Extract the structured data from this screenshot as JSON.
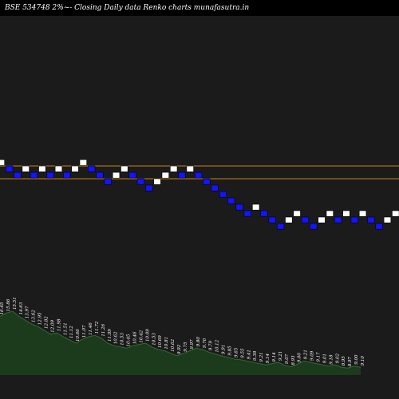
{
  "header": {
    "left": "BSE 534748  2%~-  Closing Daily data  Renko  charts munafasutra.in"
  },
  "colors": {
    "background": "#000000",
    "panel": "#1b1b1b",
    "up_brick": "#ffffff",
    "down_brick": "#1414ff",
    "brick_border": "#000000",
    "level_line": "#c8801a",
    "volume_fill": "#1c3a1c",
    "volume_line": "#2f6a2f"
  },
  "chart_data": {
    "type": "renko",
    "brick_size_label": "2%",
    "levels": [
      12.3,
      12.0
    ],
    "bricks": [
      {
        "low": 12.3,
        "dir": "up"
      },
      {
        "low": 12.15,
        "dir": "down"
      },
      {
        "low": 12.0,
        "dir": "down"
      },
      {
        "low": 12.15,
        "dir": "up"
      },
      {
        "low": 12.0,
        "dir": "down"
      },
      {
        "low": 12.15,
        "dir": "up"
      },
      {
        "low": 12.0,
        "dir": "down"
      },
      {
        "low": 12.15,
        "dir": "up"
      },
      {
        "low": 12.0,
        "dir": "down"
      },
      {
        "low": 12.15,
        "dir": "up"
      },
      {
        "low": 12.3,
        "dir": "up"
      },
      {
        "low": 12.15,
        "dir": "down"
      },
      {
        "low": 12.0,
        "dir": "down"
      },
      {
        "low": 11.85,
        "dir": "down"
      },
      {
        "low": 12.0,
        "dir": "up"
      },
      {
        "low": 12.15,
        "dir": "up"
      },
      {
        "low": 12.0,
        "dir": "down"
      },
      {
        "low": 11.85,
        "dir": "down"
      },
      {
        "low": 11.7,
        "dir": "down"
      },
      {
        "low": 11.85,
        "dir": "up"
      },
      {
        "low": 12.0,
        "dir": "up"
      },
      {
        "low": 12.15,
        "dir": "up"
      },
      {
        "low": 12.0,
        "dir": "down"
      },
      {
        "low": 12.15,
        "dir": "up"
      },
      {
        "low": 12.0,
        "dir": "down"
      },
      {
        "low": 11.85,
        "dir": "down"
      },
      {
        "low": 11.7,
        "dir": "down"
      },
      {
        "low": 11.55,
        "dir": "down"
      },
      {
        "low": 11.4,
        "dir": "down"
      },
      {
        "low": 11.25,
        "dir": "down"
      },
      {
        "low": 11.1,
        "dir": "down"
      },
      {
        "low": 11.25,
        "dir": "up"
      },
      {
        "low": 11.1,
        "dir": "down"
      },
      {
        "low": 10.95,
        "dir": "down"
      },
      {
        "low": 10.8,
        "dir": "down"
      },
      {
        "low": 10.95,
        "dir": "up"
      },
      {
        "low": 11.1,
        "dir": "up"
      },
      {
        "low": 10.95,
        "dir": "down"
      },
      {
        "low": 10.8,
        "dir": "down"
      },
      {
        "low": 10.95,
        "dir": "up"
      },
      {
        "low": 11.1,
        "dir": "up"
      },
      {
        "low": 10.95,
        "dir": "down"
      },
      {
        "low": 11.1,
        "dir": "up"
      },
      {
        "low": 10.95,
        "dir": "down"
      },
      {
        "low": 11.1,
        "dir": "up"
      },
      {
        "low": 10.95,
        "dir": "down"
      },
      {
        "low": 10.8,
        "dir": "down"
      },
      {
        "low": 10.95,
        "dir": "up"
      },
      {
        "low": 11.1,
        "dir": "up"
      }
    ],
    "volume_labels": [
      "16.45",
      "15.86",
      "15.51",
      "14.63",
      "13.97",
      "13.62",
      "12.95",
      "12.82",
      "12.09",
      "11.98",
      "11.51",
      "11.12",
      "10.66",
      "11.07",
      "11.46",
      "11.72",
      "11.26",
      "11.09",
      "10.62",
      "10.53",
      "10.45",
      "10.46",
      "10.42",
      "10.09",
      "10.53",
      "10.69",
      "10.81",
      "10.62",
      "9.92",
      "9.75",
      "9.97",
      "9.80",
      "9.76",
      "9.79",
      "10.12",
      "9.91",
      "9.85",
      "9.65",
      "9.55",
      "9.41",
      "9.38",
      "9.21",
      "9.14",
      "9.14",
      "9.21",
      "9.07",
      "8.93",
      "9.00",
      "9.21",
      "9.09",
      "9.17",
      "9.01",
      "9.18",
      "9.02",
      "8.95",
      "8.97",
      "9.00",
      "9.10"
    ],
    "volume_relative": [
      0.92,
      0.97,
      1.0,
      0.92,
      0.86,
      0.8,
      0.76,
      0.7,
      0.64,
      0.66,
      0.6,
      0.55,
      0.5,
      0.56,
      0.6,
      0.62,
      0.58,
      0.5,
      0.46,
      0.44,
      0.42,
      0.46,
      0.48,
      0.5,
      0.44,
      0.4,
      0.38,
      0.34,
      0.3,
      0.34,
      0.38,
      0.42,
      0.4,
      0.36,
      0.33,
      0.3,
      0.28,
      0.25,
      0.24,
      0.22,
      0.2,
      0.18,
      0.16,
      0.18,
      0.2,
      0.15,
      0.13,
      0.17,
      0.22,
      0.2,
      0.18,
      0.16,
      0.14,
      0.16,
      0.12,
      0.11,
      0.14,
      0.12
    ]
  }
}
